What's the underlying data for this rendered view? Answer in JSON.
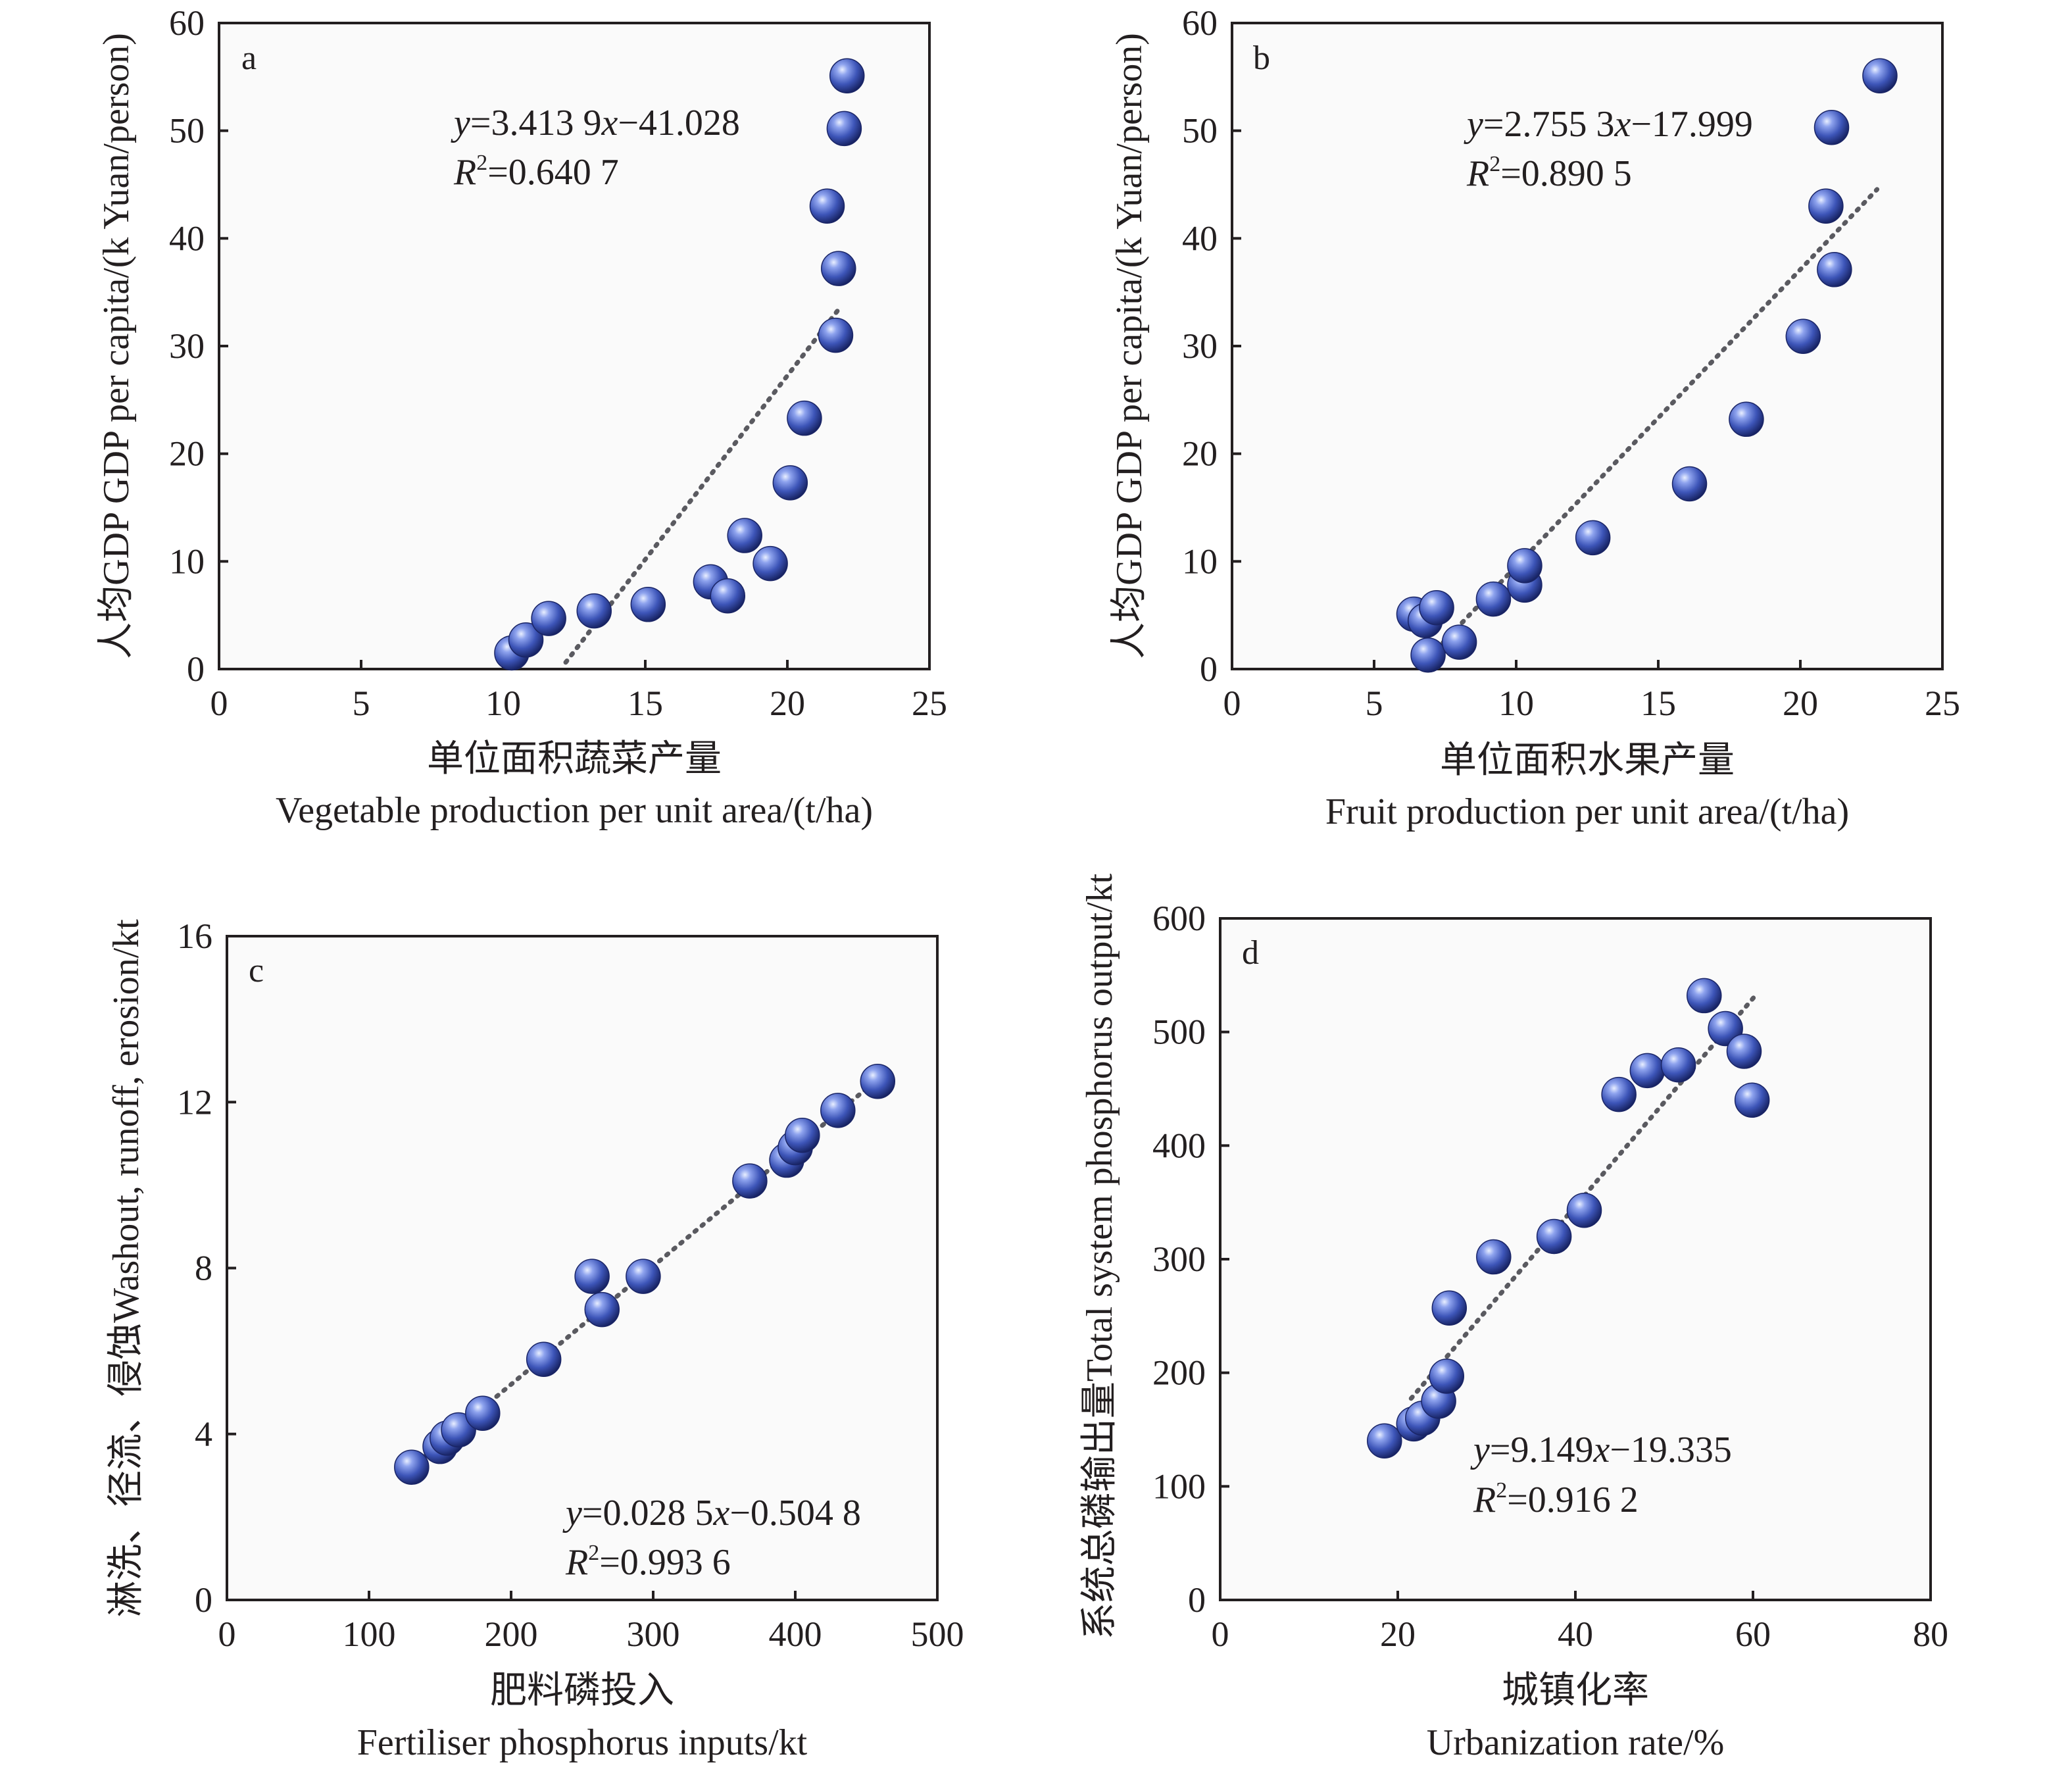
{
  "colors": {
    "frame": "#231f20",
    "plot_background": "#fafafa",
    "marker": "#3d55b8",
    "trendline": "#5a5a60"
  },
  "chart_data": [
    {
      "type": "scatter",
      "panel": "a",
      "xlabel_cn": "单位面积蔬菜产量",
      "xlabel": "Vegetable production per unit area/(t/ha)",
      "ylabel": "人均GDP GDP per capita/(k Yuan/person)",
      "xlim": [
        0,
        25
      ],
      "ylim": [
        0,
        60
      ],
      "xticks": [
        "0",
        "5",
        "10",
        "15",
        "20",
        "25"
      ],
      "yticks": [
        "0",
        "10",
        "20",
        "30",
        "40",
        "50",
        "60"
      ],
      "equation_y": "y",
      "equation_rest": "=3.413 9",
      "equation_x": "x",
      "equation_tail": "−41.028",
      "r2_label": "R",
      "r2_sup": "2",
      "r2_value": "=0.640 7",
      "fit": {
        "slope": 3.4139,
        "intercept": -41.028,
        "x_start": 12.2,
        "x_end": 21.9
      },
      "points": [
        {
          "x": 10.3,
          "y": 1.5
        },
        {
          "x": 10.8,
          "y": 2.7
        },
        {
          "x": 11.6,
          "y": 4.7
        },
        {
          "x": 13.2,
          "y": 5.4
        },
        {
          "x": 15.1,
          "y": 6.0
        },
        {
          "x": 17.3,
          "y": 8.1
        },
        {
          "x": 17.9,
          "y": 6.8
        },
        {
          "x": 18.5,
          "y": 12.4
        },
        {
          "x": 19.4,
          "y": 9.8
        },
        {
          "x": 20.1,
          "y": 17.3
        },
        {
          "x": 20.6,
          "y": 23.3
        },
        {
          "x": 21.7,
          "y": 31.0
        },
        {
          "x": 21.4,
          "y": 43.0
        },
        {
          "x": 21.8,
          "y": 37.2
        },
        {
          "x": 22.0,
          "y": 50.2
        },
        {
          "x": 22.1,
          "y": 55.1
        }
      ]
    },
    {
      "type": "scatter",
      "panel": "b",
      "xlabel_cn": "单位面积水果产量",
      "xlabel": "Fruit production per unit area/(t/ha)",
      "ylabel": "人均GDP GDP per capita/(k Yuan/person)",
      "xlim": [
        0,
        25
      ],
      "ylim": [
        0,
        60
      ],
      "xticks": [
        "0",
        "5",
        "10",
        "15",
        "20",
        "25"
      ],
      "yticks": [
        "0",
        "10",
        "20",
        "30",
        "40",
        "50",
        "60"
      ],
      "equation_y": "y",
      "equation_rest": "=2.755 3",
      "equation_x": "x",
      "equation_tail": "−17.999",
      "r2_label": "R",
      "r2_sup": "2",
      "r2_value": "=0.890 5",
      "fit": {
        "slope": 2.7553,
        "intercept": -17.999,
        "x_start": 7.2,
        "x_end": 22.7
      },
      "points": [
        {
          "x": 6.9,
          "y": 1.3
        },
        {
          "x": 6.4,
          "y": 5.1
        },
        {
          "x": 6.8,
          "y": 4.5
        },
        {
          "x": 7.2,
          "y": 5.7
        },
        {
          "x": 8.0,
          "y": 2.5
        },
        {
          "x": 9.2,
          "y": 6.5
        },
        {
          "x": 10.3,
          "y": 7.8
        },
        {
          "x": 10.3,
          "y": 9.6
        },
        {
          "x": 12.7,
          "y": 12.2
        },
        {
          "x": 16.1,
          "y": 17.2
        },
        {
          "x": 18.1,
          "y": 23.2
        },
        {
          "x": 20.1,
          "y": 30.9
        },
        {
          "x": 20.9,
          "y": 43.0
        },
        {
          "x": 21.2,
          "y": 37.1
        },
        {
          "x": 21.1,
          "y": 50.3
        },
        {
          "x": 22.8,
          "y": 55.1
        }
      ]
    },
    {
      "type": "scatter",
      "panel": "c",
      "xlabel_cn": "肥料磷投入",
      "xlabel": "Fertiliser phosphorus inputs/kt",
      "ylabel": "淋洗、径流、侵蚀Washout, runoff, erosion/kt",
      "xlim": [
        0,
        500
      ],
      "ylim": [
        0,
        16
      ],
      "xticks": [
        "0",
        "100",
        "200",
        "300",
        "400",
        "500"
      ],
      "yticks": [
        "0",
        "4",
        "8",
        "12",
        "16"
      ],
      "equation_y": "y",
      "equation_rest": "=0.028 5",
      "equation_x": "x",
      "equation_tail": "−0.504 8",
      "r2_label": "R",
      "r2_sup": "2",
      "r2_value": "=0.993 6",
      "fit": {
        "slope": 0.0285,
        "intercept": -0.5048,
        "x_start": 135,
        "x_end": 465
      },
      "points": [
        {
          "x": 130,
          "y": 3.2
        },
        {
          "x": 150,
          "y": 3.7
        },
        {
          "x": 155,
          "y": 3.9
        },
        {
          "x": 163,
          "y": 4.1
        },
        {
          "x": 180,
          "y": 4.5
        },
        {
          "x": 223,
          "y": 5.8
        },
        {
          "x": 257,
          "y": 7.8
        },
        {
          "x": 264,
          "y": 7.0
        },
        {
          "x": 293,
          "y": 7.8
        },
        {
          "x": 368,
          "y": 10.1
        },
        {
          "x": 394,
          "y": 10.6
        },
        {
          "x": 400,
          "y": 10.9
        },
        {
          "x": 405,
          "y": 11.2
        },
        {
          "x": 430,
          "y": 11.8
        },
        {
          "x": 458,
          "y": 12.5
        }
      ]
    },
    {
      "type": "scatter",
      "panel": "d",
      "xlabel_cn": "城镇化率",
      "xlabel": "Urbanization rate/%",
      "ylabel": "系统总磷输出量Total system phosphorus output/kt",
      "xlim": [
        0,
        80
      ],
      "ylim": [
        0,
        600
      ],
      "xticks": [
        "0",
        "20",
        "40",
        "60",
        "80"
      ],
      "yticks": [
        "0",
        "100",
        "200",
        "300",
        "400",
        "500",
        "600"
      ],
      "equation_y": "y",
      "equation_rest": "=9.149",
      "equation_x": "x",
      "equation_tail": "−19.335",
      "r2_label": "R",
      "r2_sup": "2",
      "r2_value": "=0.916 2",
      "fit": {
        "slope": 9.149,
        "intercept": -19.335,
        "x_start": 21.5,
        "x_end": 60.2
      },
      "points": [
        {
          "x": 18.5,
          "y": 140
        },
        {
          "x": 21.8,
          "y": 155
        },
        {
          "x": 22.8,
          "y": 160
        },
        {
          "x": 24.6,
          "y": 175
        },
        {
          "x": 25.5,
          "y": 197
        },
        {
          "x": 25.8,
          "y": 257
        },
        {
          "x": 30.8,
          "y": 302
        },
        {
          "x": 37.6,
          "y": 320
        },
        {
          "x": 41.0,
          "y": 343
        },
        {
          "x": 44.9,
          "y": 445
        },
        {
          "x": 48.1,
          "y": 466
        },
        {
          "x": 51.6,
          "y": 471
        },
        {
          "x": 54.5,
          "y": 532
        },
        {
          "x": 56.9,
          "y": 503
        },
        {
          "x": 59.0,
          "y": 483
        },
        {
          "x": 59.9,
          "y": 440
        }
      ]
    }
  ]
}
